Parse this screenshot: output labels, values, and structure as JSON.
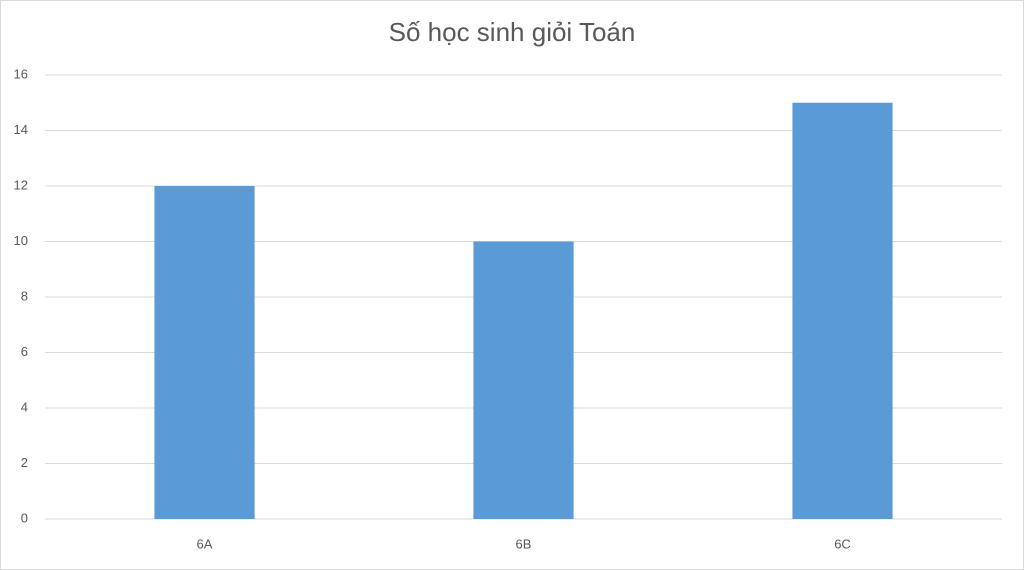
{
  "chart_data": {
    "type": "bar",
    "title": "Số học sinh giỏi Toán",
    "categories": [
      "6A",
      "6B",
      "6C"
    ],
    "values": [
      12,
      10,
      15
    ],
    "color": "#5b9bd5",
    "ylim": [
      0,
      16
    ],
    "yticks": [
      0,
      2,
      4,
      6,
      8,
      10,
      12,
      14,
      16
    ],
    "grid": true
  }
}
